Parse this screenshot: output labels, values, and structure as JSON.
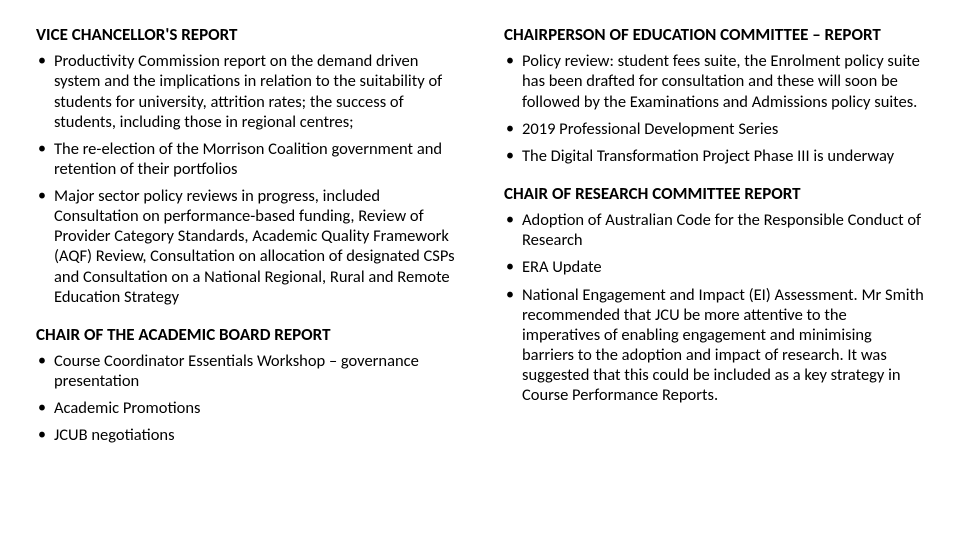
{
  "left": {
    "sections": [
      {
        "heading": "VICE CHANCELLOR'S REPORT",
        "bullets": [
          "Productivity Commission report on the demand driven system and the implications in relation to the suitability of students for university, attrition rates; the success of students, including those in regional centres;",
          "The re-election of the Morrison Coalition government and retention of their portfolios",
          "Major sector policy reviews in progress, included Consultation on performance-based funding, Review of Provider Category Standards, Academic Quality Framework (AQF) Review, Consultation on allocation of designated CSPs and Consultation on a National Regional, Rural and Remote Education Strategy"
        ]
      },
      {
        "heading": "CHAIR OF THE ACADEMIC BOARD REPORT",
        "bullets": [
          "Course Coordinator Essentials Workshop – governance presentation",
          "Academic Promotions",
          "JCUB negotiations"
        ]
      }
    ]
  },
  "right": {
    "sections": [
      {
        "heading": "CHAIRPERSON OF EDUCATION COMMITTEE – REPORT",
        "bullets": [
          "Policy review: student fees suite, the Enrolment policy suite has been drafted for consultation and these will soon be followed by the Examinations and Admissions policy suites.",
          "2019 Professional Development Series",
          "The Digital Transformation Project Phase III is underway"
        ]
      },
      {
        "heading": "CHAIR OF RESEARCH COMMITTEE REPORT",
        "bullets": [
          "Adoption of Australian Code for the Responsible Conduct of Research",
          "ERA Update",
          "National Engagement and Impact (EI) Assessment. Mr Smith recommended that JCU be more attentive to the imperatives of enabling engagement and minimising barriers to the adoption and impact of research. It was suggested that this could be included as a key strategy in Course Performance Reports."
        ]
      }
    ]
  },
  "style": {
    "background_color": "#ffffff",
    "text_color": "#000000",
    "heading_fontsize": 17,
    "body_fontsize": 16.5,
    "font_family": "Calibri"
  }
}
